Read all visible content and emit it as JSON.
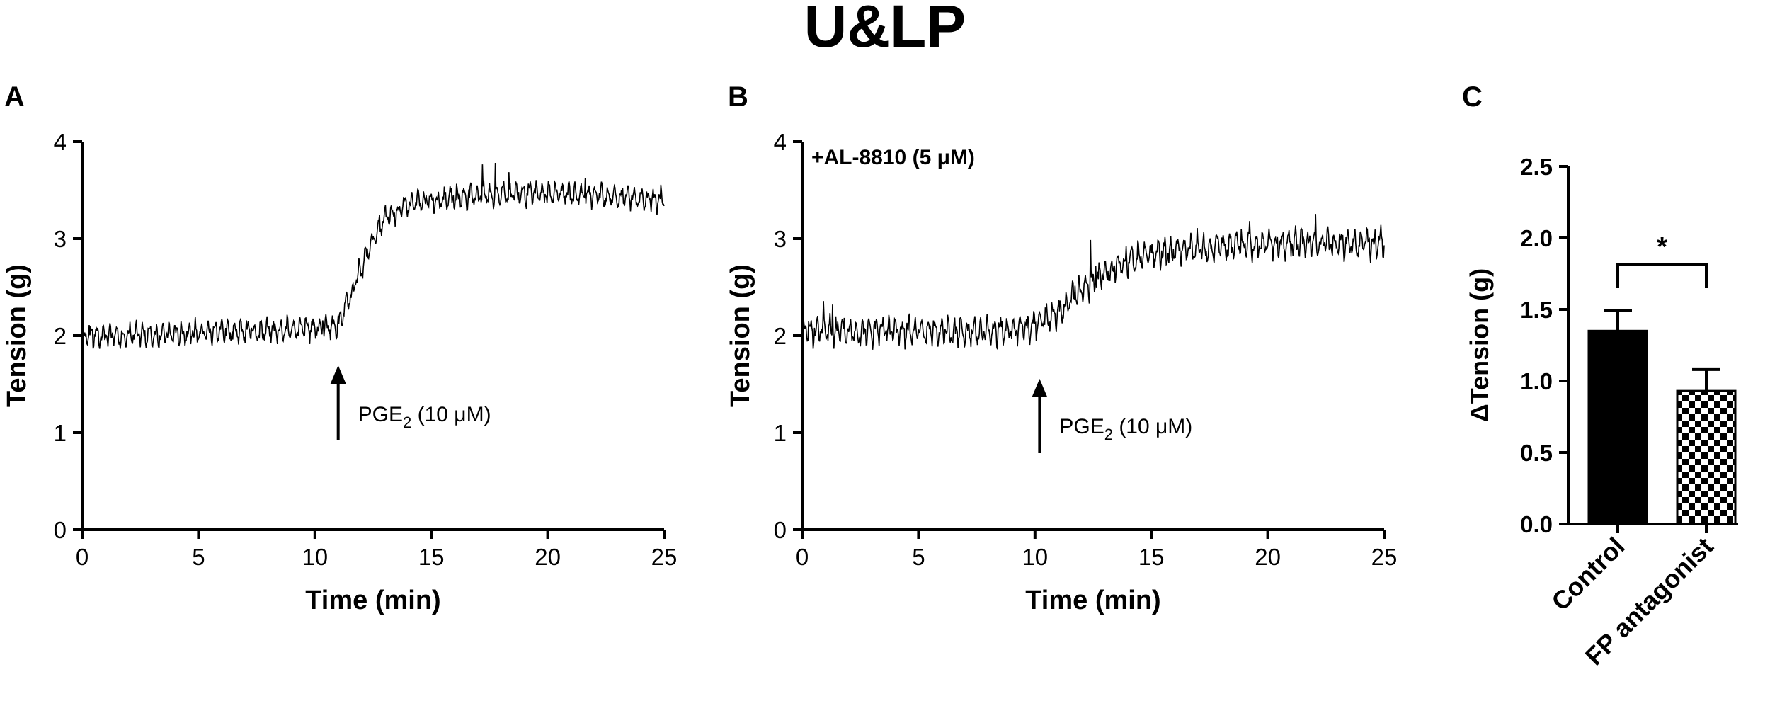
{
  "figure": {
    "title": "U&LP"
  },
  "chart_data": [
    {
      "panel": "A",
      "type": "line",
      "title": "",
      "xlabel": "Time (min)",
      "ylabel": "Tension (g)",
      "xlim": [
        0,
        25
      ],
      "ylim": [
        0,
        4
      ],
      "xticks": [
        "0",
        "5",
        "10",
        "15",
        "20",
        "25"
      ],
      "yticks": [
        "0",
        "1",
        "2",
        "3",
        "4"
      ],
      "annotation": {
        "text": "PGE",
        "subscript": "2",
        "suffix": " (10 μM)",
        "x": 11
      },
      "trace": {
        "points": [
          [
            0,
            2.0
          ],
          [
            2,
            2.0
          ],
          [
            4,
            2.02
          ],
          [
            6,
            2.05
          ],
          [
            8,
            2.05
          ],
          [
            10,
            2.08
          ],
          [
            11,
            2.1
          ],
          [
            11.5,
            2.4
          ],
          [
            12,
            2.7
          ],
          [
            12.5,
            3.0
          ],
          [
            13,
            3.2
          ],
          [
            14,
            3.35
          ],
          [
            15,
            3.4
          ],
          [
            17,
            3.45
          ],
          [
            20,
            3.47
          ],
          [
            22,
            3.45
          ],
          [
            25,
            3.4
          ]
        ],
        "noise_amplitude": 0.14
      }
    },
    {
      "panel": "B",
      "type": "line",
      "title": "",
      "xlabel": "Time (min)",
      "ylabel": "Tension (g)",
      "xlim": [
        0,
        25
      ],
      "ylim": [
        0,
        4
      ],
      "xticks": [
        "0",
        "5",
        "10",
        "15",
        "20",
        "25"
      ],
      "yticks": [
        "0",
        "1",
        "2",
        "3",
        "4"
      ],
      "inset_label": "+AL-8810 (5 μM)",
      "annotation": {
        "text": "PGE",
        "subscript": "2",
        "suffix": " (10 μM)",
        "x": 10.2
      },
      "trace": {
        "points": [
          [
            0,
            2.05
          ],
          [
            3,
            2.05
          ],
          [
            6,
            2.05
          ],
          [
            9,
            2.05
          ],
          [
            10,
            2.1
          ],
          [
            11,
            2.25
          ],
          [
            12,
            2.45
          ],
          [
            13,
            2.65
          ],
          [
            14,
            2.78
          ],
          [
            15,
            2.85
          ],
          [
            17,
            2.9
          ],
          [
            20,
            2.95
          ],
          [
            25,
            2.95
          ]
        ],
        "noise_amplitude": 0.18
      }
    },
    {
      "panel": "C",
      "type": "bar",
      "title": "",
      "xlabel": "",
      "ylabel": "ΔTension (g)",
      "categories": [
        "Control",
        "FP antagonist"
      ],
      "values": [
        1.35,
        0.93
      ],
      "errors": [
        0.14,
        0.15
      ],
      "fills": [
        "solid",
        "checkered"
      ],
      "ylim": [
        0,
        2.5
      ],
      "yticks": [
        "0.0",
        "0.5",
        "1.0",
        "1.5",
        "2.0",
        "2.5"
      ],
      "significance": "*"
    }
  ]
}
